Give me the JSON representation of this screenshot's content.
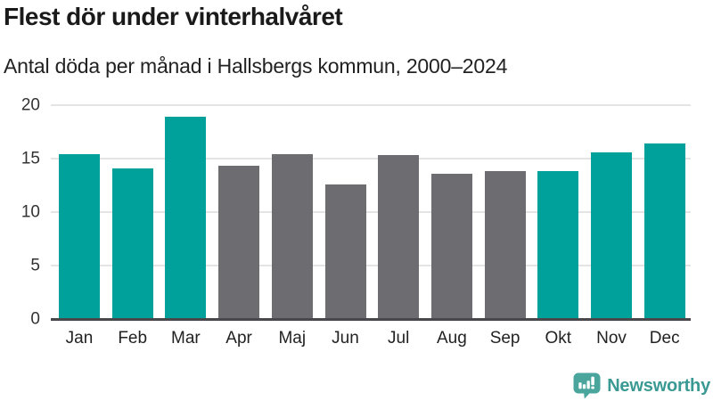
{
  "chart_data": {
    "type": "bar",
    "title": "Flest dör under vinterhalvåret",
    "subtitle": "Antal döda per månad i Hallsbergs kommun, 2000–2024",
    "categories": [
      "Jan",
      "Feb",
      "Mar",
      "Apr",
      "Maj",
      "Jun",
      "Jul",
      "Aug",
      "Sep",
      "Okt",
      "Nov",
      "Dec"
    ],
    "values": [
      15.4,
      14.1,
      18.9,
      14.3,
      15.4,
      12.6,
      15.3,
      13.6,
      13.8,
      13.8,
      15.6,
      16.4
    ],
    "bar_colors": [
      "teal",
      "teal",
      "teal",
      "gray",
      "gray",
      "gray",
      "gray",
      "gray",
      "gray",
      "teal",
      "teal",
      "teal"
    ],
    "xlabel": "",
    "ylabel": "",
    "ylim": [
      0,
      20
    ],
    "yticks": [
      0,
      5,
      10,
      15,
      20
    ],
    "grid": true,
    "legend_position": "none"
  },
  "colors": {
    "bar_teal": "#00a19a",
    "bar_gray": "#6c6c71",
    "axis_line": "#47474c",
    "gridline": "#e4e4e4",
    "title_text": "#1a1a1a",
    "subtitle_text": "#222222",
    "tick_text": "#333333",
    "logo_teal": "#3a9a93",
    "logo_icon_teal": "#4aa59d"
  },
  "branding": {
    "logo_text": "Newsworthy",
    "logo_icon": "bar-chart-speech-bubble-icon"
  }
}
